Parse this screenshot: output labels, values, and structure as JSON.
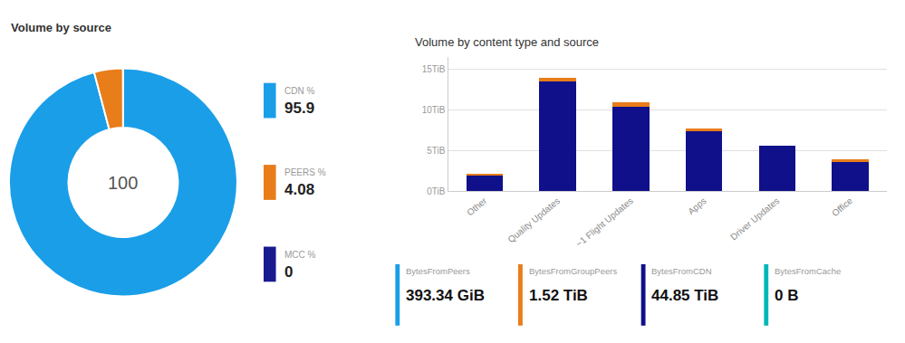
{
  "chart_data": [
    {
      "type": "pie",
      "title": "Volume by source",
      "categories": [
        "CDN %",
        "PEERS %",
        "MCC %"
      ],
      "values": [
        95.9,
        4.08,
        0.02
      ],
      "value_labels": [
        "95.9",
        "4.08",
        "0"
      ],
      "colors": [
        "#1a9ee8",
        "#e87d1a",
        "#1a1a8f"
      ],
      "annotations": [
        "100"
      ],
      "legend": "right"
    },
    {
      "type": "bar",
      "title": "Volume by content type and source",
      "categories": [
        "Other",
        "Quality Updates",
        "~1 Flight Updates",
        "Apps",
        "Driver Updates",
        "Office"
      ],
      "series": [
        {
          "color": "#10108a",
          "values": [
            2.0,
            13.5,
            10.4,
            7.5,
            5.6,
            3.6
          ]
        },
        {
          "color": "#e87d1a",
          "values": [
            0.15,
            0.45,
            0.55,
            0.22,
            0.0,
            0.28
          ]
        }
      ],
      "stacked": true,
      "ylim": [
        0,
        16.5
      ],
      "yticks": [
        {
          "value": 0,
          "label": "0TiB"
        },
        {
          "value": 5,
          "label": "5TiB"
        },
        {
          "value": 10,
          "label": "10TiB"
        },
        {
          "value": 15,
          "label": "15TiB"
        }
      ],
      "grid": true
    },
    {
      "type": "summary",
      "categories": [
        "BytesFromPeers",
        "BytesFromGroupPeers",
        "BytesFromCDN",
        "BytesFromCache"
      ],
      "values": [
        393.34,
        1.52,
        44.85,
        0
      ],
      "value_labels": [
        "393.34 GiB",
        "1.52 TiB",
        "44.85 TiB",
        "0 B"
      ],
      "colors": [
        "#1a9ee8",
        "#e87d1a",
        "#10108a",
        "#00b8b8"
      ]
    }
  ]
}
